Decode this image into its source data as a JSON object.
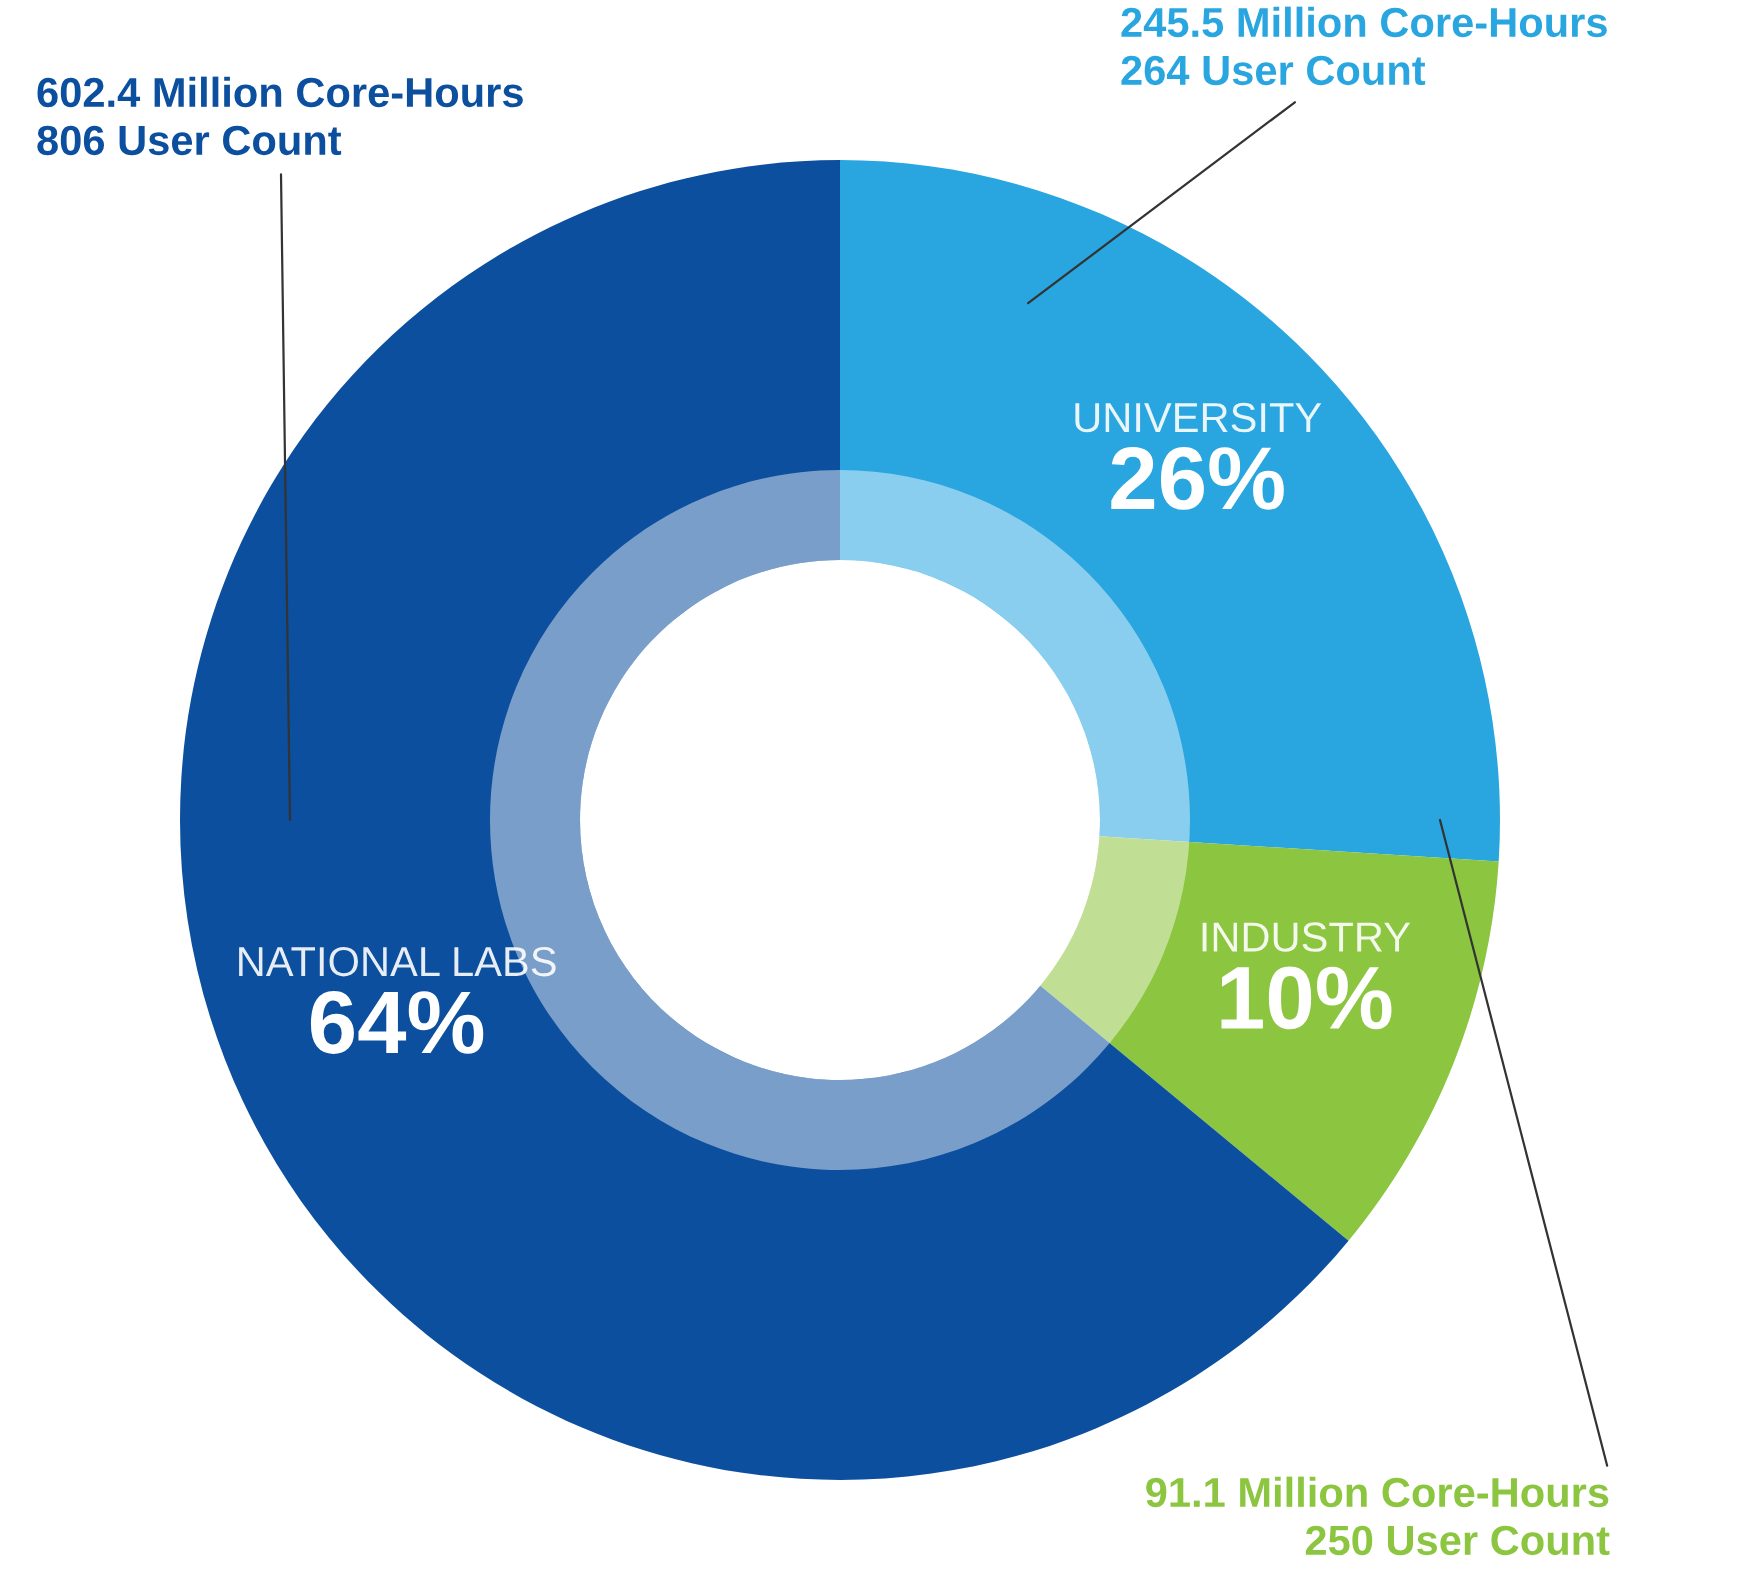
{
  "chart_data": {
    "type": "donut",
    "categories": [
      "UNIVERSITY",
      "INDUSTRY",
      "NATIONAL LABS"
    ],
    "values": [
      26,
      10,
      64
    ],
    "value_labels": [
      "26%",
      "10%",
      "64%"
    ],
    "colors": [
      "#29a6e0",
      "#8cc53f",
      "#0c4f9e"
    ],
    "legend": false,
    "annotations": [
      "245.5 Million Core-Hours\n264 User Count",
      "91.1 Million Core-Hours\n250 User Count",
      "602.4 Million Core-Hours\n806 User Count"
    ]
  }
}
